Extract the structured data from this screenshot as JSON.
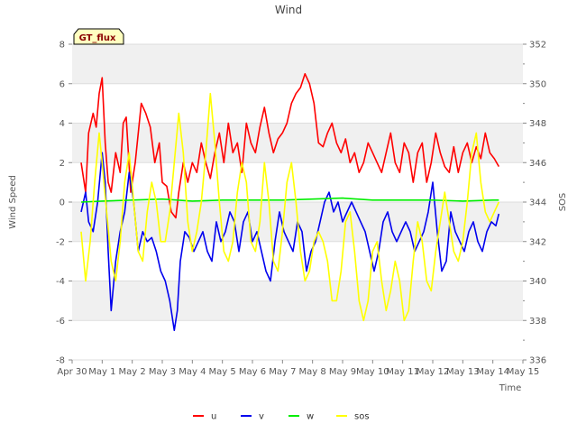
{
  "chart_data": {
    "type": "line",
    "title": "Wind",
    "xlabel": "Time",
    "ylabel": "Wind Speed",
    "y2label": "SOS",
    "badge": "GT_flux",
    "x_ticks": [
      "Apr 30",
      "May 1",
      "May 2",
      "May 3",
      "May 4",
      "May 5",
      "May 6",
      "May 7",
      "May 8",
      "May 9",
      "May 10",
      "May 11",
      "May 12",
      "May 13",
      "May 14",
      "May 15"
    ],
    "xlim": [
      0,
      15
    ],
    "ylim": [
      -8,
      8
    ],
    "y_ticks": [
      -8,
      -6,
      -4,
      -2,
      0,
      2,
      4,
      6,
      8
    ],
    "y2lim": [
      336,
      352
    ],
    "y2_ticks": [
      336,
      338,
      340,
      342,
      344,
      346,
      348,
      350,
      352
    ],
    "grid": true,
    "legend_position": "bottom",
    "colors": {
      "u": "#ff0000",
      "v": "#0000ee",
      "w": "#00ee00",
      "sos": "#ffff00",
      "band": "#f0f0f0",
      "grid": "#dddddd",
      "badge_bg": "#ffffc0",
      "badge_text": "#8b0000"
    },
    "series": [
      {
        "name": "u",
        "axis": "left",
        "color": "#ff0000",
        "x": [
          0.3,
          0.45,
          0.55,
          0.7,
          0.8,
          0.9,
          1.0,
          1.1,
          1.2,
          1.3,
          1.45,
          1.6,
          1.7,
          1.8,
          1.95,
          2.1,
          2.3,
          2.45,
          2.6,
          2.75,
          2.9,
          3.0,
          3.15,
          3.3,
          3.45,
          3.55,
          3.7,
          3.85,
          4.0,
          4.15,
          4.3,
          4.45,
          4.6,
          4.75,
          4.9,
          5.05,
          5.2,
          5.35,
          5.5,
          5.65,
          5.8,
          5.95,
          6.1,
          6.25,
          6.4,
          6.55,
          6.7,
          6.85,
          7.0,
          7.15,
          7.3,
          7.45,
          7.6,
          7.75,
          7.9,
          8.05,
          8.2,
          8.35,
          8.5,
          8.65,
          8.8,
          8.95,
          9.1,
          9.25,
          9.4,
          9.55,
          9.7,
          9.85,
          10.0,
          10.15,
          10.3,
          10.45,
          10.6,
          10.75,
          10.9,
          11.05,
          11.2,
          11.35,
          11.5,
          11.65,
          11.8,
          11.95,
          12.1,
          12.25,
          12.4,
          12.55,
          12.7,
          12.85,
          13.0,
          13.15,
          13.3,
          13.45,
          13.6,
          13.75,
          13.9,
          14.05,
          14.2
        ],
        "y": [
          2.0,
          0.5,
          3.5,
          4.5,
          3.8,
          5.5,
          6.3,
          3.0,
          1.0,
          0.5,
          2.5,
          1.5,
          4.0,
          4.3,
          0.5,
          2.0,
          5.0,
          4.5,
          3.8,
          2.0,
          3.0,
          1.0,
          0.8,
          -0.5,
          -0.8,
          0.5,
          2.0,
          1.0,
          2.0,
          1.5,
          3.0,
          2.0,
          1.2,
          2.5,
          3.5,
          2.0,
          4.0,
          2.5,
          3.0,
          1.5,
          4.0,
          3.0,
          2.5,
          3.8,
          4.8,
          3.5,
          2.5,
          3.2,
          3.5,
          4.0,
          5.0,
          5.5,
          5.8,
          6.5,
          6.0,
          5.0,
          3.0,
          2.8,
          3.5,
          4.0,
          3.0,
          2.5,
          3.2,
          2.0,
          2.5,
          1.5,
          2.0,
          3.0,
          2.5,
          2.0,
          1.5,
          2.5,
          3.5,
          2.0,
          1.5,
          3.0,
          2.5,
          1.0,
          2.5,
          3.0,
          1.0,
          2.0,
          3.5,
          2.5,
          1.8,
          1.5,
          2.8,
          1.5,
          2.5,
          3.0,
          2.0,
          2.8,
          2.2,
          3.5,
          2.5,
          2.2,
          1.8
        ]
      },
      {
        "name": "v",
        "axis": "left",
        "color": "#0000ee",
        "x": [
          0.3,
          0.45,
          0.55,
          0.7,
          0.85,
          1.0,
          1.1,
          1.2,
          1.3,
          1.45,
          1.6,
          1.75,
          1.9,
          2.05,
          2.2,
          2.35,
          2.5,
          2.65,
          2.8,
          2.95,
          3.1,
          3.25,
          3.4,
          3.5,
          3.6,
          3.75,
          3.9,
          4.05,
          4.2,
          4.35,
          4.5,
          4.65,
          4.8,
          4.95,
          5.1,
          5.25,
          5.4,
          5.55,
          5.7,
          5.85,
          6.0,
          6.15,
          6.3,
          6.45,
          6.6,
          6.75,
          6.9,
          7.05,
          7.2,
          7.35,
          7.5,
          7.65,
          7.8,
          7.95,
          8.1,
          8.25,
          8.4,
          8.55,
          8.7,
          8.85,
          9.0,
          9.15,
          9.3,
          9.45,
          9.6,
          9.75,
          9.9,
          10.05,
          10.2,
          10.35,
          10.5,
          10.65,
          10.8,
          10.95,
          11.1,
          11.25,
          11.4,
          11.55,
          11.7,
          11.85,
          12.0,
          12.15,
          12.3,
          12.45,
          12.6,
          12.75,
          12.9,
          13.05,
          13.2,
          13.35,
          13.5,
          13.65,
          13.8,
          13.95,
          14.1,
          14.2
        ],
        "y": [
          -0.5,
          0.5,
          -1.0,
          -1.5,
          0.0,
          2.5,
          1.0,
          -2.5,
          -5.5,
          -3.0,
          -1.5,
          -0.5,
          1.5,
          0.0,
          -2.5,
          -1.5,
          -2.0,
          -1.8,
          -2.5,
          -3.5,
          -4.0,
          -5.0,
          -6.5,
          -5.5,
          -3.0,
          -1.5,
          -1.8,
          -2.5,
          -2.0,
          -1.5,
          -2.5,
          -3.0,
          -1.0,
          -2.0,
          -1.5,
          -0.5,
          -1.0,
          -2.5,
          -1.0,
          -0.5,
          -2.0,
          -1.5,
          -2.5,
          -3.5,
          -4.0,
          -2.0,
          -0.5,
          -1.5,
          -2.0,
          -2.5,
          -1.0,
          -1.5,
          -3.5,
          -2.5,
          -2.0,
          -1.0,
          0.0,
          0.5,
          -0.5,
          0.0,
          -1.0,
          -0.5,
          0.0,
          -0.5,
          -1.0,
          -1.5,
          -2.5,
          -3.5,
          -2.5,
          -1.0,
          -0.5,
          -1.5,
          -2.0,
          -1.5,
          -1.0,
          -1.5,
          -2.5,
          -2.0,
          -1.5,
          -0.5,
          1.0,
          -1.5,
          -3.5,
          -3.0,
          -0.5,
          -1.5,
          -2.0,
          -2.5,
          -1.5,
          -1.0,
          -2.0,
          -2.5,
          -1.5,
          -1.0,
          -1.2,
          -0.6
        ]
      },
      {
        "name": "w",
        "axis": "left",
        "color": "#00ee00",
        "x": [
          0.3,
          1.0,
          2.0,
          3.0,
          4.0,
          5.0,
          6.0,
          7.0,
          8.0,
          9.0,
          10.0,
          11.0,
          12.0,
          13.0,
          14.0,
          14.2
        ],
        "y": [
          0.0,
          0.05,
          0.1,
          0.15,
          0.05,
          0.1,
          0.1,
          0.1,
          0.15,
          0.2,
          0.1,
          0.1,
          0.1,
          0.05,
          0.1,
          0.1
        ]
      },
      {
        "name": "sos",
        "axis": "right",
        "color": "#ffff00",
        "x": [
          0.3,
          0.45,
          0.6,
          0.75,
          0.9,
          1.0,
          1.15,
          1.3,
          1.45,
          1.6,
          1.75,
          1.9,
          2.05,
          2.2,
          2.35,
          2.5,
          2.65,
          2.8,
          2.95,
          3.1,
          3.25,
          3.4,
          3.55,
          3.7,
          3.85,
          4.0,
          4.15,
          4.3,
          4.45,
          4.6,
          4.75,
          4.9,
          5.05,
          5.2,
          5.35,
          5.5,
          5.65,
          5.8,
          5.95,
          6.1,
          6.25,
          6.4,
          6.55,
          6.7,
          6.85,
          7.0,
          7.15,
          7.3,
          7.45,
          7.6,
          7.75,
          7.9,
          8.05,
          8.2,
          8.35,
          8.5,
          8.65,
          8.8,
          8.95,
          9.1,
          9.25,
          9.4,
          9.55,
          9.7,
          9.85,
          10.0,
          10.15,
          10.3,
          10.45,
          10.6,
          10.75,
          10.9,
          11.05,
          11.2,
          11.35,
          11.5,
          11.65,
          11.8,
          11.95,
          12.1,
          12.25,
          12.4,
          12.55,
          12.7,
          12.85,
          13.0,
          13.15,
          13.3,
          13.45,
          13.6,
          13.75,
          13.9,
          14.05,
          14.2
        ],
        "y": [
          342.5,
          340.0,
          342.0,
          345.0,
          347.5,
          346.0,
          343.5,
          341.0,
          340.0,
          342.0,
          345.0,
          346.5,
          344.0,
          341.5,
          341.0,
          343.5,
          345.0,
          344.0,
          342.0,
          342.0,
          343.5,
          346.0,
          348.5,
          346.5,
          343.0,
          341.5,
          342.5,
          344.0,
          346.5,
          349.5,
          347.0,
          344.0,
          341.5,
          341.0,
          342.0,
          344.5,
          346.0,
          345.0,
          342.0,
          341.5,
          343.0,
          346.0,
          344.0,
          341.0,
          340.5,
          342.5,
          345.0,
          346.0,
          344.0,
          341.5,
          340.0,
          340.5,
          342.0,
          342.5,
          342.0,
          341.0,
          339.0,
          339.0,
          340.5,
          343.0,
          343.5,
          341.5,
          339.0,
          338.0,
          339.0,
          341.5,
          342.0,
          340.0,
          338.5,
          339.5,
          341.0,
          340.0,
          338.0,
          338.5,
          341.0,
          343.0,
          342.0,
          340.0,
          339.5,
          341.5,
          343.0,
          344.5,
          343.0,
          341.5,
          341.0,
          342.0,
          344.0,
          346.5,
          347.5,
          345.0,
          343.5,
          343.0,
          343.5,
          344.0
        ]
      }
    ]
  }
}
